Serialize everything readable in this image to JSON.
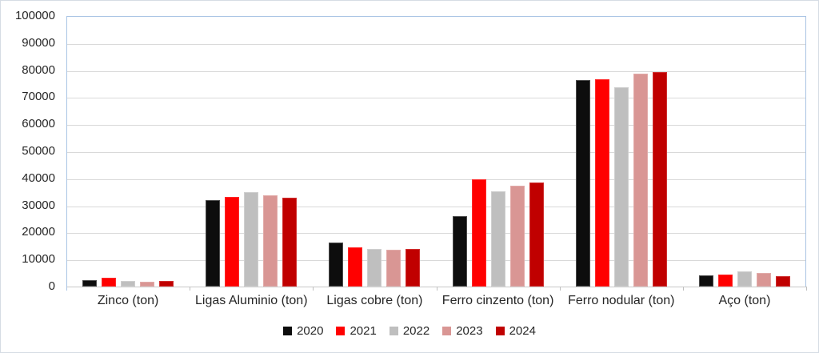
{
  "chart_data": {
    "type": "bar",
    "title": "",
    "categories": [
      "Zinco (ton)",
      "Ligas Aluminio (ton)",
      "Ligas cobre (ton)",
      "Ferro cinzento (ton)",
      "Ferro nodular (ton)",
      "Aço (ton)"
    ],
    "series": [
      {
        "name": "2020",
        "color": "#0d0d0d",
        "edge": "#4d4d4d",
        "values": [
          2500,
          32000,
          16200,
          26100,
          76300,
          4000
        ]
      },
      {
        "name": "2021",
        "color": "#ff0000",
        "edge": "#ff2a2a",
        "values": [
          3200,
          33200,
          14600,
          39700,
          76700,
          4500
        ]
      },
      {
        "name": "2022",
        "color": "#bfbfbf",
        "edge": "#cfcfcf",
        "values": [
          2200,
          34900,
          14000,
          35200,
          73700,
          5700
        ]
      },
      {
        "name": "2023",
        "color": "#d99694",
        "edge": "#e2aba9",
        "values": [
          1800,
          33700,
          13500,
          37300,
          78800,
          5100
        ]
      },
      {
        "name": "2024",
        "color": "#c00000",
        "edge": "#d03030",
        "values": [
          2000,
          32800,
          13800,
          38500,
          79400,
          3800
        ]
      }
    ],
    "xlabel": "",
    "ylabel": "",
    "ylim": [
      0,
      100000
    ],
    "ytick_step": 10000,
    "ytick_labels": [
      "0",
      "10000",
      "20000",
      "30000",
      "40000",
      "50000",
      "60000",
      "70000",
      "80000",
      "90000",
      "100000"
    ],
    "grid": true,
    "legend_position": "bottom"
  },
  "style": {
    "plot_border_color": "#a9c4e4",
    "gridline_color": "#d9d9d9",
    "axis_line_color": "#c9c9c9",
    "outer_border_color": "#d6dce4",
    "text_color": "#262626"
  }
}
